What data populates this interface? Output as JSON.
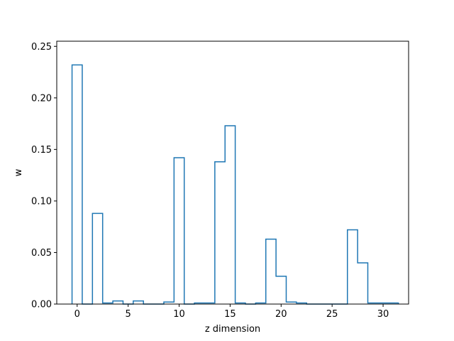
{
  "chart_data": {
    "type": "bar",
    "style": "step-histogram",
    "title": "",
    "xlabel": "z dimension",
    "ylabel": "w",
    "xlim": [
      -2.0,
      32.5
    ],
    "ylim": [
      0.0,
      0.255
    ],
    "grid": false,
    "line_color": "#1f77b4",
    "x_ticks": [
      0,
      5,
      10,
      15,
      20,
      25,
      30
    ],
    "x_tick_labels": [
      "0",
      "5",
      "10",
      "15",
      "20",
      "25",
      "30"
    ],
    "y_ticks": [
      0.0,
      0.05,
      0.1,
      0.15,
      0.2,
      0.25
    ],
    "y_tick_labels": [
      "0.00",
      "0.05",
      "0.10",
      "0.15",
      "0.20",
      "0.25"
    ],
    "categories": [
      0,
      1,
      2,
      3,
      4,
      5,
      6,
      7,
      8,
      9,
      10,
      11,
      12,
      13,
      14,
      15,
      16,
      17,
      18,
      19,
      20,
      21,
      22,
      23,
      24,
      25,
      26,
      27,
      28,
      29,
      30,
      31
    ],
    "values": [
      0.232,
      0.0,
      0.088,
      0.001,
      0.003,
      0.0,
      0.003,
      0.0,
      0.0,
      0.002,
      0.142,
      0.0,
      0.001,
      0.001,
      0.138,
      0.173,
      0.001,
      0.0,
      0.001,
      0.063,
      0.027,
      0.002,
      0.001,
      0.0,
      0.0,
      0.0,
      0.0,
      0.072,
      0.04,
      0.001,
      0.001,
      0.001
    ]
  }
}
